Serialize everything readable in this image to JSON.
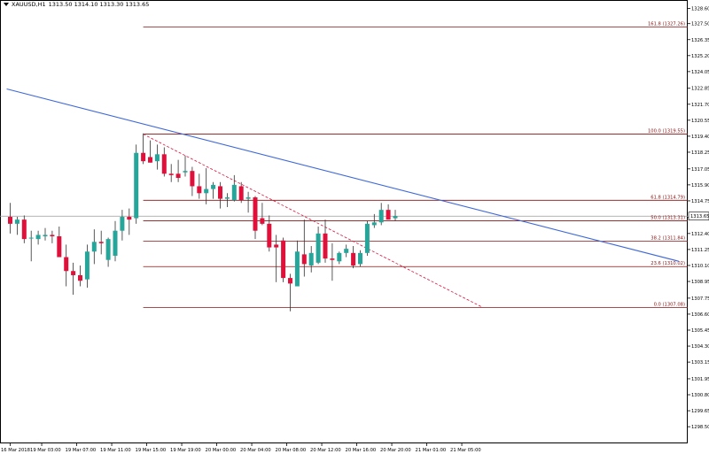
{
  "header": {
    "symbol": "XAUUSD,H1",
    "ohlc": "1313.50 1314.10 1313.30 1313.65"
  },
  "colors": {
    "bull": "#26a69a",
    "bear": "#e0103a",
    "wick": "#303030",
    "trendline": "#3f68d9",
    "fibo": "#8a1212",
    "fibo_dashed": "#e0103a",
    "current_price_line": "#9a9a9a",
    "axis": "#000000"
  },
  "chart_data": {
    "type": "candlestick",
    "symbol": "XAUUSD",
    "timeframe": "H1",
    "ylim": [
      1297.3,
      1329.2
    ],
    "y_ticks": [
      "1328.60",
      "1327.50",
      "1326.35",
      "1325.20",
      "1324.05",
      "1322.85",
      "1321.70",
      "1320.55",
      "1319.40",
      "1318.25",
      "1317.05",
      "1315.90",
      "1314.75",
      "1313.55",
      "1312.40",
      "1311.25",
      "1310.10",
      "1308.95",
      "1307.75",
      "1306.60",
      "1305.45",
      "1304.30",
      "1303.15",
      "1301.95",
      "1300.80",
      "1299.65",
      "1298.50"
    ],
    "x_ticks": [
      "16 Mar 2018",
      "19 Mar 03:00",
      "19 Mar 07:00",
      "19 Mar 11:00",
      "19 Mar 15:00",
      "19 Mar 19:00",
      "20 Mar 00:00",
      "20 Mar 04:00",
      "20 Mar 08:00",
      "20 Mar 12:00",
      "20 Mar 16:00",
      "20 Mar 20:00",
      "21 Mar 01:00",
      "21 Mar 05:00"
    ],
    "current_price": 1313.65,
    "current_price_label": "1313.65",
    "candles": [
      {
        "o": 1313.6,
        "h": 1314.6,
        "l": 1312.4,
        "c": 1313.1
      },
      {
        "o": 1313.1,
        "h": 1313.6,
        "l": 1312.3,
        "c": 1313.4
      },
      {
        "o": 1313.4,
        "h": 1313.7,
        "l": 1311.7,
        "c": 1312.0
      },
      {
        "o": 1312.1,
        "h": 1312.6,
        "l": 1310.4,
        "c": 1312.1
      },
      {
        "o": 1312.0,
        "h": 1312.6,
        "l": 1311.6,
        "c": 1312.3
      },
      {
        "o": 1312.2,
        "h": 1312.8,
        "l": 1311.9,
        "c": 1312.3
      },
      {
        "o": 1312.3,
        "h": 1312.6,
        "l": 1311.7,
        "c": 1312.2
      },
      {
        "o": 1312.2,
        "h": 1312.9,
        "l": 1311.0,
        "c": 1310.7
      },
      {
        "o": 1310.7,
        "h": 1311.6,
        "l": 1308.6,
        "c": 1309.7
      },
      {
        "o": 1309.7,
        "h": 1310.3,
        "l": 1308.0,
        "c": 1309.4
      },
      {
        "o": 1309.4,
        "h": 1310.1,
        "l": 1308.6,
        "c": 1309.0
      },
      {
        "o": 1309.1,
        "h": 1311.6,
        "l": 1308.5,
        "c": 1311.1
      },
      {
        "o": 1311.1,
        "h": 1312.7,
        "l": 1310.2,
        "c": 1311.8
      },
      {
        "o": 1311.8,
        "h": 1312.6,
        "l": 1310.9,
        "c": 1311.7
      },
      {
        "o": 1310.5,
        "h": 1312.1,
        "l": 1310.0,
        "c": 1312.0
      },
      {
        "o": 1310.8,
        "h": 1313.3,
        "l": 1310.4,
        "c": 1312.6
      },
      {
        "o": 1312.6,
        "h": 1314.1,
        "l": 1311.9,
        "c": 1313.6
      },
      {
        "o": 1313.6,
        "h": 1314.2,
        "l": 1312.3,
        "c": 1313.4
      },
      {
        "o": 1313.5,
        "h": 1318.8,
        "l": 1313.1,
        "c": 1318.2
      },
      {
        "o": 1318.2,
        "h": 1319.6,
        "l": 1317.4,
        "c": 1317.6
      },
      {
        "o": 1317.9,
        "h": 1319.1,
        "l": 1317.5,
        "c": 1317.5
      },
      {
        "o": 1317.6,
        "h": 1318.8,
        "l": 1317.0,
        "c": 1318.1
      },
      {
        "o": 1318.1,
        "h": 1318.6,
        "l": 1316.5,
        "c": 1316.7
      },
      {
        "o": 1316.7,
        "h": 1317.4,
        "l": 1316.1,
        "c": 1316.6
      },
      {
        "o": 1316.7,
        "h": 1317.7,
        "l": 1316.1,
        "c": 1316.4
      },
      {
        "o": 1316.8,
        "h": 1318.0,
        "l": 1316.5,
        "c": 1316.9
      },
      {
        "o": 1316.9,
        "h": 1317.2,
        "l": 1315.1,
        "c": 1315.8
      },
      {
        "o": 1315.8,
        "h": 1316.7,
        "l": 1314.9,
        "c": 1315.3
      },
      {
        "o": 1315.3,
        "h": 1317.1,
        "l": 1314.5,
        "c": 1315.6
      },
      {
        "o": 1315.6,
        "h": 1316.1,
        "l": 1314.9,
        "c": 1315.9
      },
      {
        "o": 1315.8,
        "h": 1316.1,
        "l": 1314.2,
        "c": 1314.9
      },
      {
        "o": 1314.9,
        "h": 1315.3,
        "l": 1314.3,
        "c": 1315.0
      },
      {
        "o": 1314.8,
        "h": 1316.6,
        "l": 1314.7,
        "c": 1315.9
      },
      {
        "o": 1315.8,
        "h": 1316.1,
        "l": 1314.6,
        "c": 1314.8
      },
      {
        "o": 1314.9,
        "h": 1315.4,
        "l": 1313.9,
        "c": 1315.0
      },
      {
        "o": 1315.0,
        "h": 1315.1,
        "l": 1312.0,
        "c": 1312.6
      },
      {
        "o": 1313.5,
        "h": 1314.6,
        "l": 1313.0,
        "c": 1313.1
      },
      {
        "o": 1313.1,
        "h": 1313.7,
        "l": 1311.1,
        "c": 1311.4
      },
      {
        "o": 1311.6,
        "h": 1312.3,
        "l": 1308.9,
        "c": 1311.4
      },
      {
        "o": 1311.9,
        "h": 1312.1,
        "l": 1308.9,
        "c": 1309.2
      },
      {
        "o": 1309.2,
        "h": 1309.5,
        "l": 1306.8,
        "c": 1308.8
      },
      {
        "o": 1308.6,
        "h": 1311.9,
        "l": 1308.6,
        "c": 1311.1
      },
      {
        "o": 1310.9,
        "h": 1313.4,
        "l": 1309.3,
        "c": 1310.2
      },
      {
        "o": 1310.1,
        "h": 1311.5,
        "l": 1309.6,
        "c": 1311.0
      },
      {
        "o": 1310.3,
        "h": 1312.9,
        "l": 1310.2,
        "c": 1312.4
      },
      {
        "o": 1312.4,
        "h": 1313.4,
        "l": 1310.3,
        "c": 1310.6
      },
      {
        "o": 1310.6,
        "h": 1311.7,
        "l": 1309.0,
        "c": 1310.5
      },
      {
        "o": 1310.4,
        "h": 1311.1,
        "l": 1310.2,
        "c": 1311.0
      },
      {
        "o": 1311.0,
        "h": 1311.6,
        "l": 1310.7,
        "c": 1311.3
      },
      {
        "o": 1311.0,
        "h": 1311.5,
        "l": 1309.9,
        "c": 1310.1
      },
      {
        "o": 1310.2,
        "h": 1311.2,
        "l": 1310.0,
        "c": 1311.0
      },
      {
        "o": 1311.0,
        "h": 1313.3,
        "l": 1310.8,
        "c": 1313.1
      },
      {
        "o": 1313.0,
        "h": 1313.8,
        "l": 1312.8,
        "c": 1313.2
      },
      {
        "o": 1313.2,
        "h": 1314.6,
        "l": 1313.0,
        "c": 1314.1
      },
      {
        "o": 1314.1,
        "h": 1314.5,
        "l": 1313.5,
        "c": 1313.4
      },
      {
        "o": 1313.5,
        "h": 1314.1,
        "l": 1313.3,
        "c": 1313.65
      }
    ],
    "fibonacci": {
      "levels": [
        {
          "ratio": "161.8",
          "price": 1327.26,
          "label": "161.8 (1327.26)"
        },
        {
          "ratio": "100.0",
          "price": 1319.55,
          "label": "100.0 (1319.55)"
        },
        {
          "ratio": "61.8",
          "price": 1314.79,
          "label": "61.8 (1314.79)"
        },
        {
          "ratio": "50.0",
          "price": 1313.31,
          "label": "50.0 (1313.31)"
        },
        {
          "ratio": "38.2",
          "price": 1311.84,
          "label": "38.2 (1311.84)"
        },
        {
          "ratio": "23.6",
          "price": 1310.02,
          "label": "23.6 (1310.02)"
        },
        {
          "ratio": "0.0",
          "price": 1307.08,
          "label": "0.0 (1307.08)"
        }
      ]
    },
    "trendline": {
      "from": {
        "bar": -0.5,
        "price": 1322.8
      },
      "to": {
        "bar": 95.5,
        "price": 1310.4
      }
    },
    "fibo_diagonal": {
      "from": {
        "bar": 19,
        "price": 1319.55
      },
      "to": {
        "bar": 67.5,
        "price": 1307.08
      }
    }
  }
}
